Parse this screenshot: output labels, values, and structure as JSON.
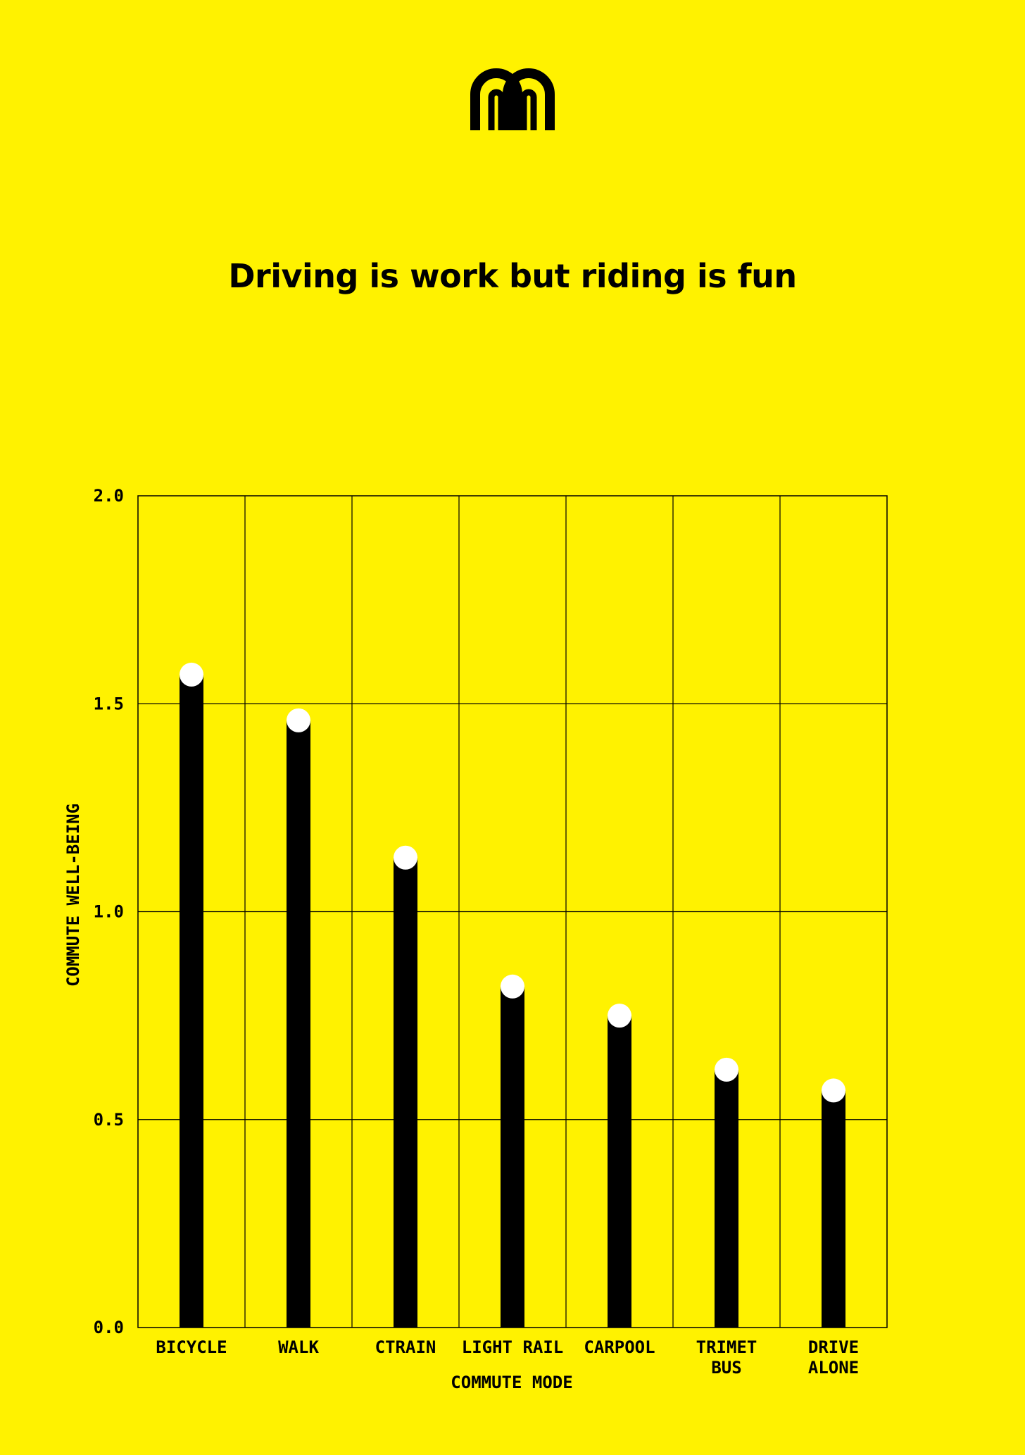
{
  "logo": {
    "icon": "double-arch-logo-icon"
  },
  "colors": {
    "background": "#FFF200",
    "bar": "#000000",
    "dot": "#FFFFFF",
    "grid": "#000000"
  },
  "chart_data": {
    "type": "bar",
    "title": "Driving is work but riding is fun",
    "xlabel": "COMMUTE MODE",
    "ylabel": "COMMUTE WELL-BEING",
    "ylim": [
      0,
      2.0
    ],
    "yticks": [
      "0.0",
      "0.5",
      "1.0",
      "1.5",
      "2.0"
    ],
    "grid": true,
    "categories": [
      [
        "BICYCLE"
      ],
      [
        "WALK"
      ],
      [
        "CTRAIN"
      ],
      [
        "LIGHT RAIL"
      ],
      [
        "CARPOOL"
      ],
      [
        "TRIMET",
        "BUS"
      ],
      [
        "DRIVE",
        "ALONE"
      ]
    ],
    "values": [
      1.57,
      1.46,
      1.13,
      0.82,
      0.75,
      0.62,
      0.57
    ]
  }
}
